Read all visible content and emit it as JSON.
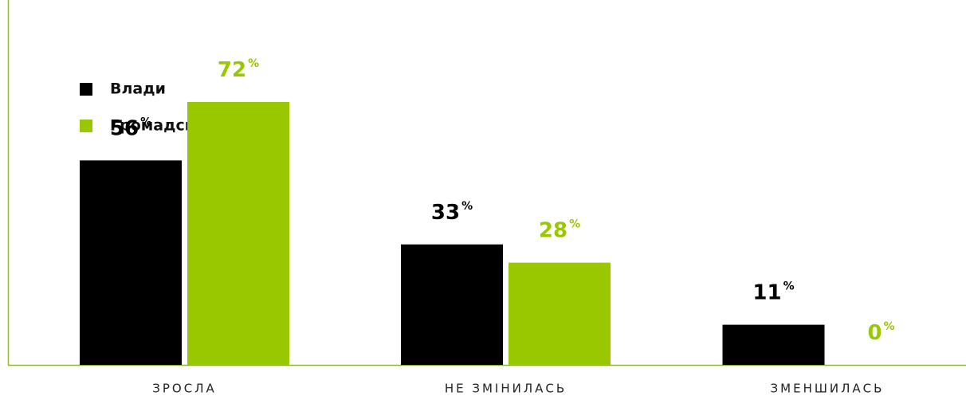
{
  "chart_data": {
    "type": "bar",
    "categories": [
      "ЗРОСЛА",
      "НЕ ЗМІНИЛАСЬ",
      "ЗМЕНШИЛАСЬ"
    ],
    "series": [
      {
        "name": "Влади",
        "color": "#000000",
        "values": [
          56,
          33,
          11
        ],
        "value_labels": [
          "56%",
          "33%",
          "11%"
        ]
      },
      {
        "name": "Громадського руху",
        "color": "#99c700",
        "values": [
          72,
          28,
          0
        ],
        "value_labels": [
          "72%",
          "28%",
          "0%"
        ]
      }
    ],
    "legend": "top-left"
  }
}
